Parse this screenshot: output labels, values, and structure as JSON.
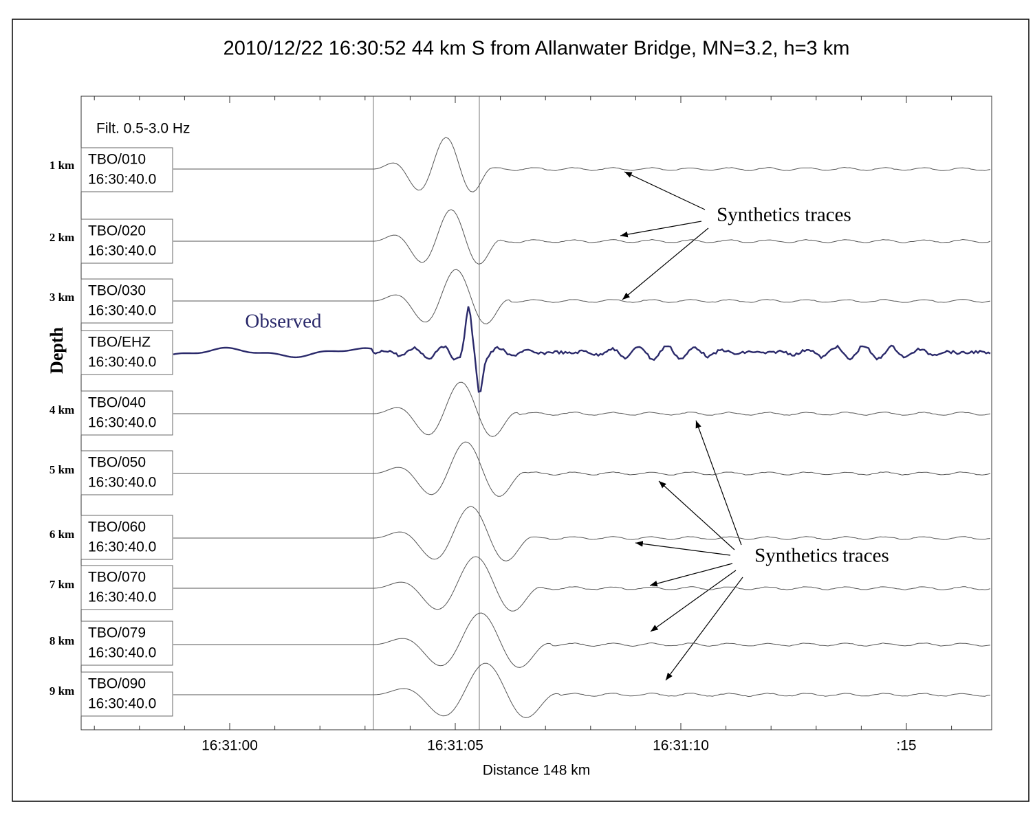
{
  "title": "2010/12/22 16:30:52 44 km S from Allanwater Bridge, MN=3.2, h=3 km",
  "filter": "Filt. 0.5-3.0 Hz",
  "y_axis_label": "Depth",
  "x_axis_label": "Distance 148 km",
  "x_tick_labels": [
    "16:31:00",
    "16:31:05",
    "16:31:10",
    ":15"
  ],
  "traces": [
    {
      "depth": "1 km",
      "station": "TBO/010",
      "time": "16:30:40.0"
    },
    {
      "depth": "2 km",
      "station": "TBO/020",
      "time": "16:30:40.0"
    },
    {
      "depth": "3 km",
      "station": "TBO/030",
      "time": "16:30:40.0"
    },
    {
      "depth": null,
      "station": "TBO/EHZ",
      "time": "16:30:40.0"
    },
    {
      "depth": "4 km",
      "station": "TBO/040",
      "time": "16:30:40.0"
    },
    {
      "depth": "5 km",
      "station": "TBO/050",
      "time": "16:30:40.0"
    },
    {
      "depth": "6 km",
      "station": "TBO/060",
      "time": "16:30:40.0"
    },
    {
      "depth": "7 km",
      "station": "TBO/070",
      "time": "16:30:40.0"
    },
    {
      "depth": "8 km",
      "station": "TBO/079",
      "time": "16:30:40.0"
    },
    {
      "depth": "9 km",
      "station": "TBO/090",
      "time": "16:30:40.0"
    }
  ],
  "annotations": {
    "observed": "Observed",
    "synthetics_top": "Synthetics traces",
    "synthetics_bottom": "Synthetics traces"
  }
}
